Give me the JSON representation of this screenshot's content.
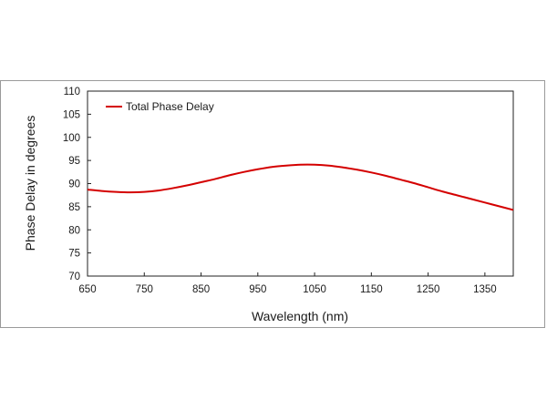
{
  "chart_data": {
    "type": "line",
    "xlabel": "Wavelength (nm)",
    "ylabel": "Phase Delay in degrees",
    "xlim": [
      650,
      1400
    ],
    "ylim": [
      70,
      110
    ],
    "xticks": [
      650,
      750,
      850,
      950,
      1050,
      1150,
      1250,
      1350
    ],
    "yticks": [
      70,
      75,
      80,
      85,
      90,
      95,
      100,
      105,
      110
    ],
    "grid": false,
    "legend_position": "top-left",
    "series": [
      {
        "name": "Total Phase Delay",
        "color": "#d40000",
        "x": [
          650,
          675,
          700,
          725,
          750,
          775,
          800,
          825,
          850,
          875,
          900,
          925,
          950,
          975,
          1000,
          1025,
          1050,
          1075,
          1100,
          1125,
          1150,
          1175,
          1200,
          1225,
          1250,
          1275,
          1300,
          1325,
          1350,
          1375,
          1400
        ],
        "y": [
          88.7,
          88.4,
          88.2,
          88.1,
          88.2,
          88.5,
          89.0,
          89.6,
          90.3,
          91.0,
          91.8,
          92.5,
          93.1,
          93.6,
          93.9,
          94.1,
          94.1,
          93.9,
          93.5,
          93.0,
          92.4,
          91.7,
          90.9,
          90.1,
          89.2,
          88.3,
          87.5,
          86.7,
          85.9,
          85.1,
          84.3
        ]
      }
    ]
  }
}
